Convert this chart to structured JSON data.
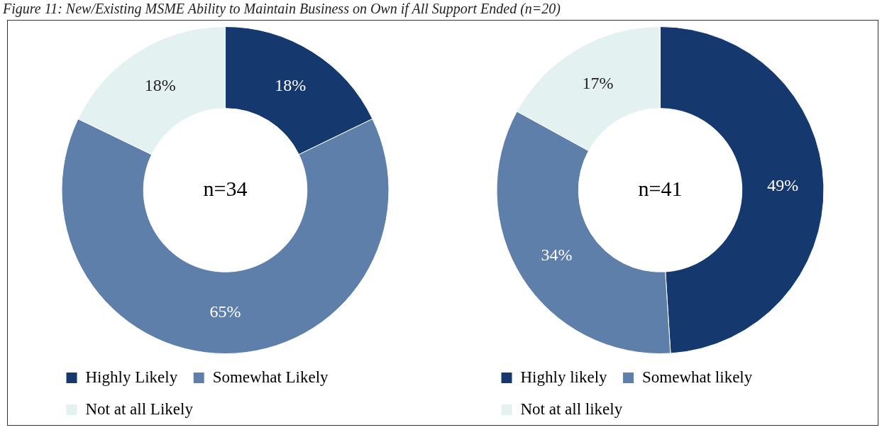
{
  "chart_data": [
    {
      "type": "donut",
      "title": "Figure 11: New/Existing MSME Ability to Maintain Business on Own if All Support Ended (n=20)",
      "categories": [
        "Highly Likely",
        "Somewhat Likely",
        "Not at all Likely"
      ],
      "values": [
        18,
        65,
        18
      ],
      "value_labels": [
        "18%",
        "65%",
        "18%"
      ],
      "colors": [
        "#15386f",
        "#5f7fab",
        "#e3f1f0"
      ],
      "legend": "bottom",
      "annotations": [
        "n=34"
      ]
    },
    {
      "type": "donut",
      "categories": [
        "Highly likely",
        "Somewhat likely",
        "Not at all likely"
      ],
      "values": [
        49,
        34,
        17
      ],
      "value_labels": [
        "49%",
        "34%",
        "17%"
      ],
      "colors": [
        "#15386f",
        "#5f7fab",
        "#e3f1f0"
      ],
      "legend": "bottom",
      "annotations": [
        "n=41"
      ]
    }
  ]
}
